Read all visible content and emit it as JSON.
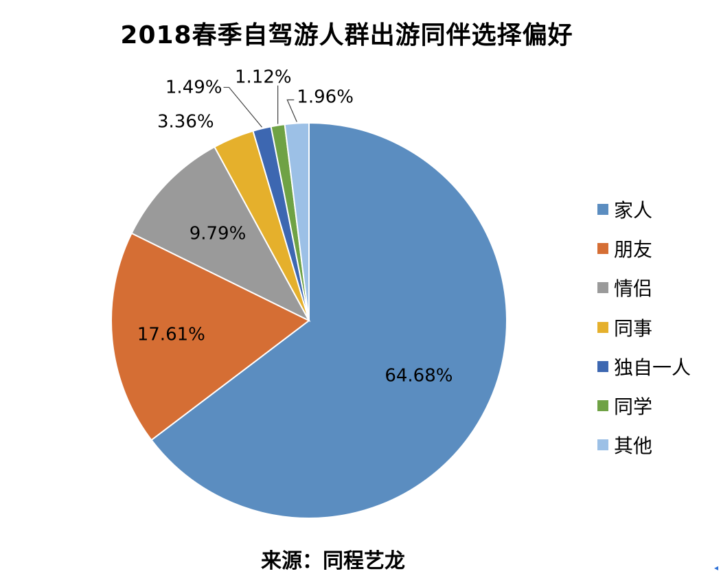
{
  "title": "2018春季自驾游人群出游同伴选择偏好",
  "source": "来源：同程艺龙",
  "chart_data": {
    "type": "pie",
    "title": "2018春季自驾游人群出游同伴选择偏好",
    "legend_position": "right",
    "slices": [
      {
        "label": "家人",
        "value": 64.68,
        "display": "64.68%",
        "color": "#5B8DC0"
      },
      {
        "label": "朋友",
        "value": 17.61,
        "display": "17.61%",
        "color": "#D56E34"
      },
      {
        "label": "情侣",
        "value": 9.79,
        "display": "9.79%",
        "color": "#9A9A9A"
      },
      {
        "label": "同事",
        "value": 3.36,
        "display": "3.36%",
        "color": "#E5B02C"
      },
      {
        "label": "独自一人",
        "value": 1.49,
        "display": "1.49%",
        "color": "#3D67B1"
      },
      {
        "label": "同学",
        "value": 1.12,
        "display": "1.12%",
        "color": "#6FA245"
      },
      {
        "label": "其他",
        "value": 1.96,
        "display": "1.96%",
        "color": "#9CC0E6"
      }
    ]
  }
}
